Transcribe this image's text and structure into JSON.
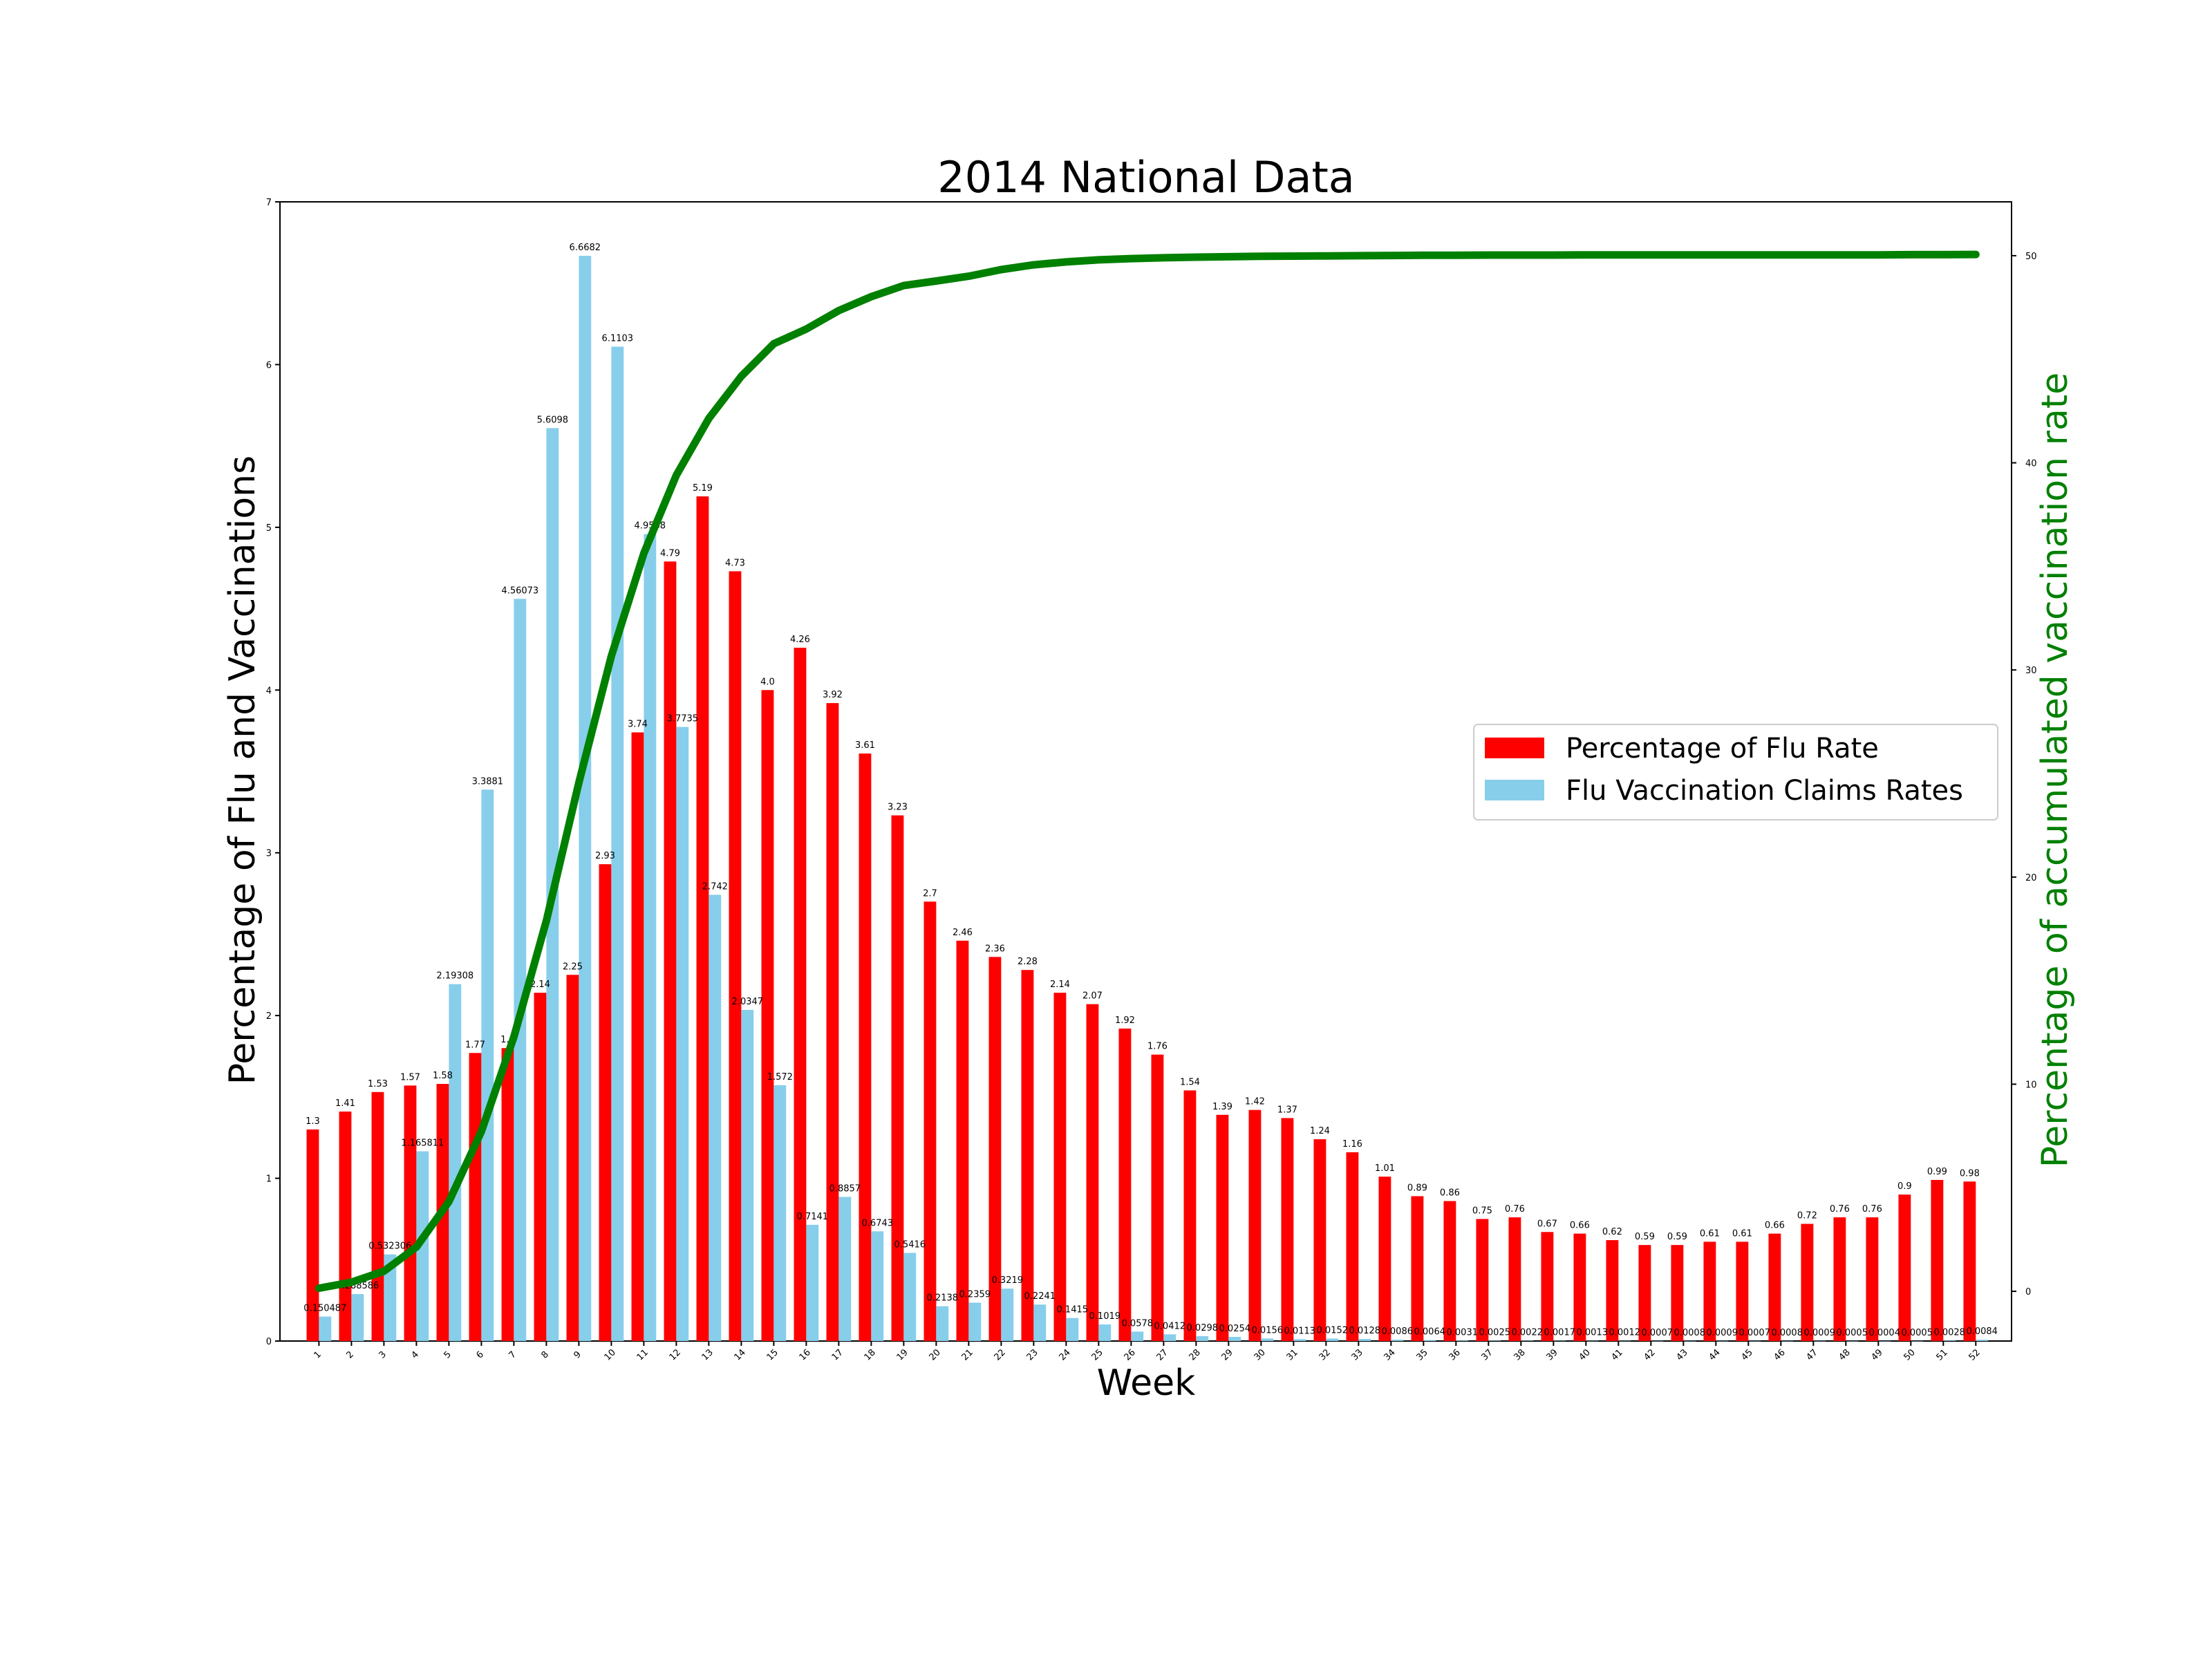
{
  "chart_data": {
    "type": "bar",
    "title": "2014 National Data",
    "xlabel": "Week",
    "ylabel": "Percentage of Flu and Vaccinations",
    "y2label": "Percentage of accumulated vaccination rate",
    "ylim": [
      0,
      7
    ],
    "y2lim": [
      -2.4,
      52.6
    ],
    "yticks": [
      "0",
      "1",
      "2",
      "3",
      "4",
      "5",
      "6",
      "7"
    ],
    "y2ticks": [
      "0",
      "10",
      "20",
      "30",
      "40",
      "50"
    ],
    "categories": [
      "1",
      "2",
      "3",
      "4",
      "5",
      "6",
      "7",
      "8",
      "9",
      "10",
      "11",
      "12",
      "13",
      "14",
      "15",
      "16",
      "17",
      "18",
      "19",
      "20",
      "21",
      "22",
      "23",
      "24",
      "25",
      "26",
      "27",
      "28",
      "29",
      "30",
      "31",
      "32",
      "33",
      "34",
      "35",
      "36",
      "37",
      "38",
      "39",
      "40",
      "41",
      "42",
      "43",
      "44",
      "45",
      "46",
      "47",
      "48",
      "49",
      "50",
      "51",
      "52"
    ],
    "series": [
      {
        "name": "Percentage of Flu Rate",
        "kind": "bar",
        "color": "#ff0000",
        "values": [
          1.3,
          1.41,
          1.53,
          1.57,
          1.58,
          1.77,
          1.8,
          2.14,
          2.25,
          2.93,
          3.74,
          4.79,
          5.19,
          4.73,
          4.0,
          4.26,
          3.92,
          3.61,
          3.23,
          2.7,
          2.46,
          2.36,
          2.28,
          2.14,
          2.07,
          1.92,
          1.76,
          1.54,
          1.39,
          1.42,
          1.37,
          1.24,
          1.16,
          1.01,
          0.89,
          0.86,
          0.75,
          0.76,
          0.67,
          0.66,
          0.62,
          0.59,
          0.59,
          0.61,
          0.61,
          0.66,
          0.72,
          0.76,
          0.76,
          0.9,
          0.99,
          0.98
        ],
        "labels": [
          "1.3",
          "1.41",
          "1.53",
          "1.57",
          "1.58",
          "1.77",
          "1.8",
          "2.14",
          "2.25",
          "2.93",
          "3.74",
          "4.79",
          "5.19",
          "4.73",
          "4.0",
          "4.26",
          "3.92",
          "3.61",
          "3.23",
          "2.7",
          "2.46",
          "2.36",
          "2.28",
          "2.14",
          "2.07",
          "1.92",
          "1.76",
          "1.54",
          "1.39",
          "1.42",
          "1.37",
          "1.24",
          "1.16",
          "1.01",
          "0.89",
          "0.86",
          "0.75",
          "0.76",
          "0.67",
          "0.66",
          "0.62",
          "0.59",
          "0.59",
          "0.61",
          "0.61",
          "0.66",
          "0.72",
          "0.76",
          "0.76",
          "0.9",
          "0.99",
          "0.98"
        ]
      },
      {
        "name": "Flu Vaccination Claims Rates",
        "kind": "bar",
        "color": "#87ceeb",
        "values": [
          0.150487,
          0.288586,
          0.532306,
          1.165811,
          2.19308,
          3.3881,
          4.56073,
          5.6098,
          6.6682,
          6.1103,
          4.9588,
          3.7735,
          2.742,
          2.0347,
          1.572,
          0.7141,
          0.8857,
          0.6743,
          0.5416,
          0.2138,
          0.2359,
          0.3219,
          0.2241,
          0.1415,
          0.1019,
          0.0578,
          0.0412,
          0.0298,
          0.0254,
          0.0156,
          0.0113,
          0.0152,
          0.0128,
          0.0086,
          0.0064,
          0.0031,
          0.0025,
          0.0022,
          0.0017,
          0.0013,
          0.0012,
          0.0007,
          0.0008,
          0.0009,
          0.0007,
          0.0008,
          0.0009,
          0.0005,
          0.0004,
          0.0005,
          0.0028,
          0.0084
        ],
        "labels": [
          "0.150487",
          "0.288586",
          "0.532306",
          "1.165811",
          "2.19308",
          "3.3881",
          "4.56073",
          "5.6098",
          "6.6682",
          "6.1103",
          "4.9588",
          "3.7735",
          "2.742",
          "2.0347",
          "1.572",
          "0.7141",
          "0.8857",
          "0.6743",
          "0.5416",
          "0.2138",
          "0.2359",
          "0.3219",
          "0.2241",
          "0.1415",
          "0.1019",
          "0.0578",
          "0.0412",
          "0.0298",
          "0.0254",
          "0.0156",
          "0.0113",
          "0.0152",
          "0.0128",
          "0.0086",
          "0.0064",
          "0.0031",
          "0.0025",
          "0.0022",
          "0.0017",
          "0.0013",
          "0.0012",
          "0.0007",
          "0.0008",
          "0.0009",
          "0.0007",
          "0.0008",
          "0.0009",
          "0.0005",
          "0.0004",
          "0.0005",
          "0.0028",
          "0.0084"
        ]
      },
      {
        "kind": "line",
        "axis": "right",
        "color": "#008000",
        "values": [
          0.15,
          0.44,
          0.97,
          2.14,
          4.33,
          7.72,
          12.28,
          17.89,
          24.56,
          30.67,
          35.63,
          39.4,
          42.14,
          44.18,
          45.75,
          46.46,
          47.35,
          48.02,
          48.56,
          48.78,
          49.01,
          49.33,
          49.56,
          49.7,
          49.8,
          49.86,
          49.9,
          49.93,
          49.95,
          49.97,
          49.98,
          49.99,
          50.0,
          50.01,
          50.02,
          50.02,
          50.03,
          50.03,
          50.03,
          50.04,
          50.04,
          50.04,
          50.04,
          50.04,
          50.04,
          50.04,
          50.04,
          50.04,
          50.04,
          50.05,
          50.05,
          50.06
        ]
      }
    ],
    "legend": {
      "position": "center-right",
      "entries": [
        "Percentage of Flu Rate",
        "Flu Vaccination Claims Rates"
      ]
    },
    "grid": false
  }
}
